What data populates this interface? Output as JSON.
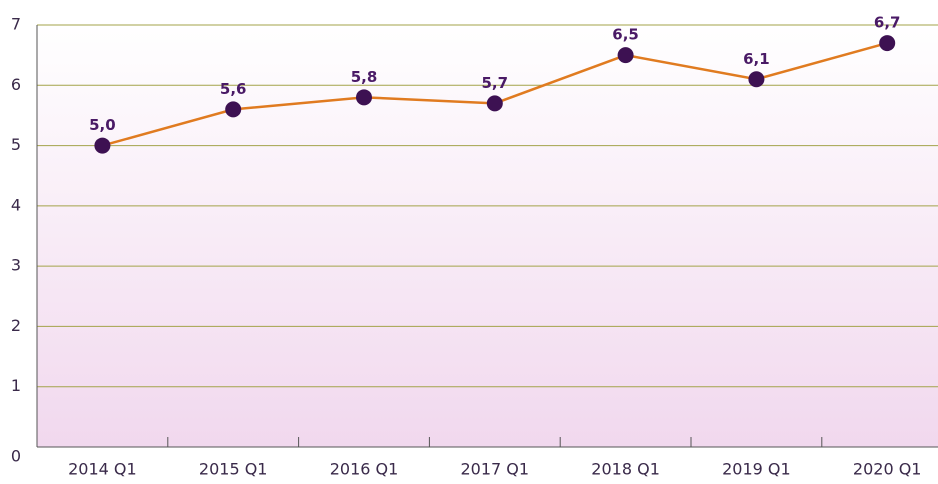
{
  "chart_data": {
    "type": "line",
    "categories": [
      "2014 Q1",
      "2015 Q1",
      "2016 Q1",
      "2017 Q1",
      "2018 Q1",
      "2019 Q1",
      "2020 Q1"
    ],
    "series": [
      {
        "color": "#e07b20",
        "marker_color": "#3d1152",
        "values": [
          5.0,
          5.6,
          5.8,
          5.7,
          6.5,
          6.1,
          6.7
        ],
        "value_labels": [
          "5,0",
          "5,6",
          "5,8",
          "5,7",
          "6,5",
          "6,1",
          "6,7"
        ]
      }
    ],
    "ylim": [
      0,
      7
    ],
    "yticks": [
      0,
      1,
      2,
      3,
      4,
      5,
      6,
      7
    ],
    "grid": true,
    "grid_color": "#a3a34a"
  }
}
